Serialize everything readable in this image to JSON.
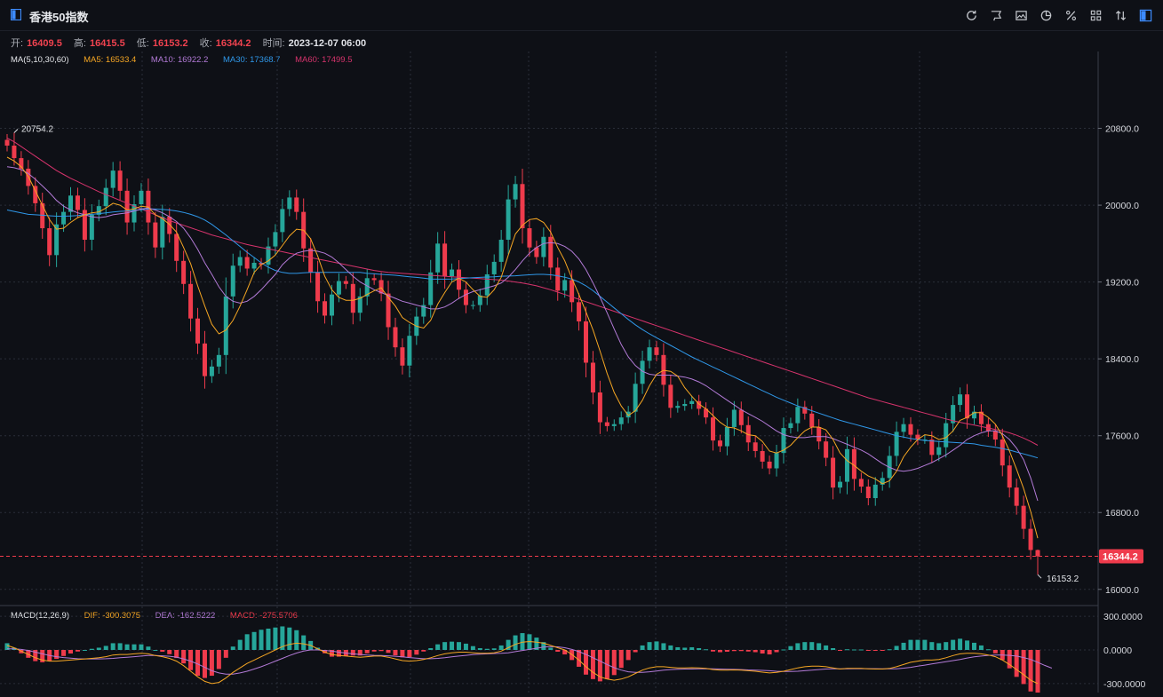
{
  "header": {
    "title": "香港50指数",
    "tools": [
      "refresh-icon",
      "draw-icon",
      "image-icon",
      "pie-icon",
      "percent-icon",
      "grid-icon",
      "sort-icon",
      "layout-icon"
    ]
  },
  "ohlc": {
    "open_label": "开:",
    "open": "16409.5",
    "high_label": "高:",
    "high": "16415.5",
    "low_label": "低:",
    "low": "16153.2",
    "close_label": "收:",
    "close": "16344.2",
    "time_label": "时间:",
    "time": "2023-12-07 06:00"
  },
  "ma_legend": {
    "name": "MA(5,10,30,60)",
    "ma5": "MA5: 16533.4",
    "ma10": "MA10: 16922.2",
    "ma30": "MA30: 17368.7",
    "ma60": "MA60: 17499.5"
  },
  "macd_legend": {
    "name": "MACD(12,26,9)",
    "dif": "DIF: -300.3075",
    "dea": "DEA: -162.5222",
    "macd": "MACD: -275.5706"
  },
  "colors": {
    "up": "#26a69a",
    "down": "#ef3b4c",
    "ma5": "#f5a623",
    "ma10": "#b27ad6",
    "ma30": "#2f97e8",
    "ma60": "#d6336c",
    "grid": "#2a2e39"
  },
  "chart_data": {
    "type": "candlestick",
    "y_axis_ticks": [
      "20800.0",
      "20000.0",
      "19200.0",
      "18400.0",
      "17600.0",
      "16800.0",
      "16000.0"
    ],
    "ylim": [
      15850,
      21600
    ],
    "high_marker": "20754.2",
    "low_marker": "16153.2",
    "last_price": "16344.2",
    "macd_axis_ticks": [
      "300.0000",
      "0.0000",
      "-300.0000"
    ],
    "macd_ylim": [
      -380,
      380
    ],
    "closes": [
      20620,
      20490,
      20380,
      20200,
      20020,
      19760,
      19480,
      19800,
      19930,
      20100,
      19950,
      19640,
      19900,
      19990,
      20180,
      20360,
      20150,
      19820,
      20010,
      20150,
      19820,
      19560,
      19880,
      19700,
      19420,
      19180,
      18820,
      18560,
      18220,
      18320,
      18440,
      19050,
      19370,
      19460,
      19340,
      19400,
      19380,
      19570,
      19720,
      19960,
      20080,
      19930,
      19550,
      19300,
      19000,
      18850,
      19070,
      19210,
      19180,
      18880,
      19050,
      19240,
      19220,
      19080,
      18730,
      18520,
      18330,
      18640,
      18840,
      18960,
      19300,
      19600,
      19260,
      19330,
      19120,
      18960,
      18960,
      19060,
      19280,
      19410,
      19640,
      20060,
      20220,
      19760,
      19560,
      19460,
      19670,
      19350,
      19110,
      19220,
      18990,
      18790,
      18360,
      18050,
      17740,
      17700,
      17720,
      17790,
      17850,
      18140,
      18380,
      18520,
      18440,
      18130,
      17890,
      17910,
      17930,
      17960,
      17880,
      17790,
      17550,
      17490,
      17690,
      17870,
      17710,
      17530,
      17440,
      17330,
      17260,
      17420,
      17680,
      17730,
      17900,
      17830,
      17690,
      17540,
      17370,
      17060,
      17120,
      17460,
      17150,
      17070,
      16950,
      17090,
      17160,
      17390,
      17640,
      17720,
      17610,
      17560,
      17560,
      17400,
      17480,
      17730,
      17920,
      18030,
      17780,
      17850,
      17720,
      17650,
      17560,
      17290,
      17060,
      16870,
      16630,
      16410,
      16344
    ],
    "ma5": [
      20500,
      20460,
      20400,
      20300,
      20150,
      20000,
      19850,
      19750,
      19760,
      19820,
      19870,
      19900,
      19920,
      19930,
      19970,
      20020,
      20000,
      19950,
      19960,
      19990,
      19980,
      19900,
      19860,
      19800,
      19720,
      19560,
      19390,
      19160,
      18950,
      18760,
      18660,
      18700,
      18800,
      18950,
      19120,
      19300,
      19380,
      19420,
      19480,
      19580,
      19680,
      19750,
      19740,
      19650,
      19470,
      19260,
      19120,
      19040,
      19010,
      19010,
      19030,
      19070,
      19110,
      19140,
      19040,
      18950,
      18830,
      18780,
      18740,
      18720,
      18800,
      18970,
      19090,
      19200,
      19240,
      19200,
      19120,
      19050,
      19040,
      19120,
      19250,
      19480,
      19700,
      19790,
      19850,
      19860,
      19820,
      19720,
      19560,
      19420,
      19240,
      19070,
      18890,
      18700,
      18480,
      18250,
      18050,
      17910,
      17810,
      17860,
      17970,
      18120,
      18240,
      18280,
      18270,
      18220,
      18100,
      18010,
      17930,
      17880,
      17810,
      17740,
      17690,
      17680,
      17650,
      17610,
      17600,
      17540,
      17440,
      17420,
      17450,
      17500,
      17580,
      17650,
      17690,
      17690,
      17660,
      17560,
      17420,
      17340,
      17290,
      17230,
      17180,
      17150,
      17100,
      17130,
      17230,
      17380,
      17480,
      17560,
      17610,
      17600,
      17560,
      17580,
      17650,
      17760,
      17790,
      17840,
      17840,
      17790,
      17720,
      17600,
      17440,
      17250,
      17050,
      16810,
      16533
    ],
    "ma10": [
      20400,
      20390,
      20370,
      20330,
      20270,
      20200,
      20130,
      20050,
      19990,
      19950,
      19920,
      19900,
      19880,
      19870,
      19880,
      19900,
      19910,
      19920,
      19940,
      19960,
      19970,
      19950,
      19920,
      19880,
      19830,
      19760,
      19660,
      19540,
      19400,
      19280,
      19150,
      19050,
      19000,
      18980,
      19000,
      19050,
      19120,
      19200,
      19280,
      19380,
      19450,
      19500,
      19520,
      19530,
      19520,
      19500,
      19460,
      19400,
      19330,
      19260,
      19200,
      19160,
      19120,
      19090,
      19060,
      19030,
      19000,
      18980,
      18960,
      18940,
      18920,
      18920,
      18940,
      18980,
      19030,
      19070,
      19100,
      19120,
      19140,
      19160,
      19190,
      19250,
      19330,
      19420,
      19500,
      19560,
      19600,
      19610,
      19600,
      19570,
      19520,
      19440,
      19330,
      19190,
      19040,
      18880,
      18710,
      18550,
      18420,
      18330,
      18270,
      18240,
      18230,
      18230,
      18230,
      18220,
      18210,
      18190,
      18160,
      18120,
      18070,
      18020,
      17970,
      17920,
      17870,
      17830,
      17790,
      17750,
      17700,
      17650,
      17610,
      17590,
      17580,
      17580,
      17590,
      17590,
      17590,
      17570,
      17540,
      17510,
      17480,
      17450,
      17410,
      17360,
      17310,
      17270,
      17240,
      17230,
      17240,
      17260,
      17290,
      17320,
      17360,
      17400,
      17450,
      17500,
      17560,
      17600,
      17630,
      17650,
      17650,
      17620,
      17560,
      17470,
      17350,
      17160,
      16922
    ],
    "ma30": [
      19950,
      19935,
      19920,
      19905,
      19900,
      19895,
      19890,
      19885,
      19885,
      19888,
      19892,
      19900,
      19905,
      19912,
      19920,
      19930,
      19936,
      19940,
      19945,
      19952,
      19960,
      19960,
      19955,
      19950,
      19940,
      19925,
      19905,
      19880,
      19845,
      19800,
      19745,
      19690,
      19630,
      19570,
      19510,
      19455,
      19400,
      19355,
      19320,
      19300,
      19290,
      19290,
      19295,
      19300,
      19300,
      19300,
      19300,
      19300,
      19300,
      19300,
      19300,
      19290,
      19285,
      19280,
      19275,
      19270,
      19262,
      19255,
      19248,
      19240,
      19232,
      19230,
      19230,
      19232,
      19236,
      19240,
      19245,
      19248,
      19252,
      19255,
      19260,
      19262,
      19265,
      19270,
      19275,
      19280,
      19280,
      19275,
      19265,
      19250,
      19230,
      19200,
      19160,
      19110,
      19050,
      18990,
      18930,
      18870,
      18810,
      18755,
      18705,
      18660,
      18620,
      18580,
      18540,
      18500,
      18460,
      18420,
      18385,
      18350,
      18315,
      18280,
      18245,
      18210,
      18175,
      18140,
      18105,
      18070,
      18035,
      18000,
      17970,
      17940,
      17910,
      17885,
      17860,
      17835,
      17810,
      17785,
      17760,
      17740,
      17720,
      17700,
      17680,
      17660,
      17640,
      17620,
      17600,
      17585,
      17570,
      17560,
      17550,
      17545,
      17540,
      17535,
      17530,
      17525,
      17520,
      17515,
      17500,
      17490,
      17480,
      17465,
      17450,
      17430,
      17410,
      17390,
      17369
    ],
    "ma60": [
      20700,
      20660,
      20610,
      20560,
      20510,
      20460,
      20410,
      20360,
      20320,
      20280,
      20245,
      20210,
      20175,
      20140,
      20110,
      20080,
      20050,
      20020,
      19990,
      19960,
      19930,
      19900,
      19870,
      19840,
      19815,
      19790,
      19765,
      19740,
      19715,
      19690,
      19670,
      19650,
      19630,
      19610,
      19590,
      19575,
      19560,
      19545,
      19530,
      19515,
      19500,
      19485,
      19470,
      19455,
      19440,
      19425,
      19410,
      19395,
      19380,
      19365,
      19350,
      19335,
      19320,
      19310,
      19300,
      19295,
      19290,
      19285,
      19280,
      19275,
      19270,
      19265,
      19260,
      19255,
      19250,
      19245,
      19240,
      19235,
      19230,
      19225,
      19220,
      19210,
      19200,
      19190,
      19175,
      19160,
      19140,
      19120,
      19095,
      19070,
      19045,
      19020,
      18995,
      18970,
      18945,
      18920,
      18895,
      18870,
      18845,
      18820,
      18795,
      18770,
      18745,
      18720,
      18695,
      18670,
      18645,
      18620,
      18595,
      18570,
      18545,
      18520,
      18495,
      18470,
      18445,
      18420,
      18395,
      18370,
      18345,
      18320,
      18295,
      18270,
      18245,
      18220,
      18195,
      18170,
      18145,
      18120,
      18095,
      18070,
      18045,
      18020,
      17995,
      17975,
      17955,
      17935,
      17915,
      17895,
      17875,
      17855,
      17835,
      17815,
      17795,
      17775,
      17755,
      17740,
      17725,
      17710,
      17695,
      17680,
      17665,
      17650,
      17630,
      17605,
      17575,
      17540,
      17500
    ],
    "dif": [
      40,
      20,
      -10,
      -40,
      -70,
      -90,
      -100,
      -100,
      -95,
      -90,
      -85,
      -80,
      -75,
      -70,
      -60,
      -45,
      -40,
      -40,
      -35,
      -30,
      -35,
      -50,
      -60,
      -75,
      -100,
      -140,
      -190,
      -240,
      -280,
      -300,
      -290,
      -250,
      -200,
      -160,
      -120,
      -90,
      -60,
      -30,
      0,
      30,
      50,
      60,
      55,
      40,
      10,
      -20,
      -40,
      -50,
      -55,
      -60,
      -65,
      -60,
      -55,
      -55,
      -65,
      -80,
      -95,
      -100,
      -95,
      -85,
      -70,
      -50,
      -35,
      -25,
      -20,
      -20,
      -25,
      -30,
      -30,
      -25,
      -10,
      20,
      50,
      70,
      75,
      70,
      60,
      40,
      20,
      0,
      -40,
      -90,
      -150,
      -200,
      -240,
      -260,
      -270,
      -260,
      -240,
      -210,
      -180,
      -160,
      -150,
      -150,
      -155,
      -160,
      -160,
      -158,
      -160,
      -165,
      -175,
      -180,
      -180,
      -178,
      -180,
      -185,
      -190,
      -198,
      -205,
      -200,
      -190,
      -175,
      -160,
      -150,
      -145,
      -145,
      -150,
      -160,
      -170,
      -165,
      -165,
      -165,
      -168,
      -170,
      -170,
      -165,
      -150,
      -130,
      -110,
      -100,
      -90,
      -90,
      -85,
      -70,
      -50,
      -35,
      -30,
      -30,
      -35,
      -45,
      -60,
      -90,
      -130,
      -175,
      -220,
      -270,
      -300
    ],
    "dea": [
      10,
      10,
      5,
      -5,
      -20,
      -35,
      -50,
      -60,
      -68,
      -74,
      -78,
      -80,
      -80,
      -80,
      -78,
      -75,
      -70,
      -65,
      -60,
      -55,
      -50,
      -50,
      -52,
      -56,
      -64,
      -80,
      -100,
      -125,
      -155,
      -185,
      -205,
      -215,
      -215,
      -205,
      -190,
      -170,
      -150,
      -125,
      -100,
      -75,
      -50,
      -28,
      -10,
      0,
      0,
      -5,
      -10,
      -20,
      -28,
      -35,
      -40,
      -45,
      -48,
      -50,
      -52,
      -56,
      -62,
      -68,
      -74,
      -78,
      -78,
      -75,
      -70,
      -62,
      -55,
      -48,
      -42,
      -38,
      -35,
      -32,
      -30,
      -25,
      -15,
      -5,
      5,
      15,
      25,
      30,
      28,
      20,
      5,
      -15,
      -40,
      -70,
      -100,
      -130,
      -158,
      -180,
      -195,
      -200,
      -200,
      -195,
      -188,
      -180,
      -175,
      -172,
      -170,
      -170,
      -168,
      -168,
      -168,
      -170,
      -172,
      -173,
      -175,
      -178,
      -180,
      -182,
      -185,
      -190,
      -192,
      -192,
      -190,
      -185,
      -180,
      -175,
      -170,
      -168,
      -168,
      -168,
      -167,
      -167,
      -167,
      -167,
      -168,
      -168,
      -168,
      -162,
      -155,
      -145,
      -135,
      -125,
      -115,
      -105,
      -95,
      -85,
      -72,
      -62,
      -55,
      -48,
      -45,
      -45,
      -48,
      -55,
      -68,
      -85,
      -110,
      -138,
      -162
    ]
  }
}
